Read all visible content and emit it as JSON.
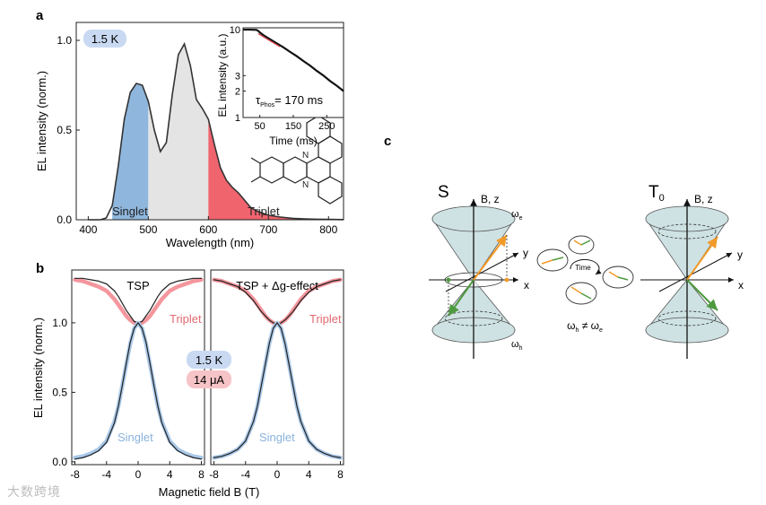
{
  "panel_labels": {
    "a": "a",
    "b": "b",
    "c": "c"
  },
  "watermark": "大数跨境",
  "colors": {
    "singlet": "#8fb6dc",
    "triplet": "#f0646e",
    "middle": "#e4e4e4",
    "cone": "#cfe2e3",
    "orange": "#f29a27",
    "green": "#4e9a3e",
    "badge_blue": "#c9d9f2",
    "badge_red": "#f6c3c6",
    "dark": "#333333"
  },
  "chart_data": [
    {
      "type": "area",
      "title": "",
      "xlabel": "Wavelength (nm)",
      "ylabel": "EL intensity (norm.)",
      "xlim": [
        380,
        825
      ],
      "ylim": [
        0,
        1.1
      ],
      "xticks": [
        400,
        500,
        600,
        700,
        800
      ],
      "yticks": [
        0.0,
        0.5,
        1.0
      ],
      "ytick_labels": [
        "0.0",
        "0.5",
        "1.0"
      ],
      "temperature_badge": "1.5 K",
      "region_labels": {
        "singlet": "Singlet",
        "triplet": "Triplet"
      },
      "region_bounds": {
        "singlet": [
          440,
          500
        ],
        "middle": [
          500,
          600
        ],
        "triplet": [
          600,
          825
        ]
      },
      "spectrum": {
        "x": [
          400,
          420,
          430,
          440,
          450,
          460,
          470,
          480,
          490,
          500,
          510,
          520,
          530,
          540,
          550,
          560,
          570,
          580,
          590,
          600,
          610,
          620,
          630,
          640,
          650,
          660,
          670,
          680,
          700,
          720,
          740,
          760,
          780,
          800,
          825
        ],
        "y": [
          0.0,
          0.0,
          0.01,
          0.08,
          0.3,
          0.56,
          0.71,
          0.76,
          0.75,
          0.66,
          0.5,
          0.38,
          0.43,
          0.7,
          0.92,
          0.98,
          0.86,
          0.67,
          0.62,
          0.56,
          0.42,
          0.29,
          0.22,
          0.18,
          0.15,
          0.11,
          0.07,
          0.05,
          0.025,
          0.015,
          0.008,
          0.005,
          0.003,
          0.002,
          0.001
        ]
      }
    },
    {
      "type": "line",
      "inset": true,
      "xlabel": "Time (ms)",
      "ylabel": "EL intensity (a.u.)",
      "yscale": "log",
      "xlim": [
        0,
        300
      ],
      "ylim": [
        1,
        10.5
      ],
      "xticks": [
        50,
        150,
        250
      ],
      "yticks": [
        1,
        2,
        3,
        10
      ],
      "annotation": "τ",
      "annotation_sub": "Phos",
      "annotation_value": "= 170 ms",
      "series": [
        {
          "name": "data",
          "x": [
            0,
            20,
            40,
            45,
            50,
            60,
            80,
            100,
            120,
            140,
            160,
            180,
            200,
            220,
            240,
            260,
            280,
            300
          ],
          "y": [
            10,
            10,
            9.95,
            9.7,
            9.3,
            8.7,
            7.8,
            7.0,
            6.3,
            5.6,
            5.0,
            4.4,
            3.9,
            3.4,
            3.0,
            2.6,
            2.3,
            2.0
          ]
        },
        {
          "name": "fit",
          "x": [
            45,
            110
          ],
          "y": [
            9.0,
            6.4
          ]
        }
      ]
    },
    {
      "type": "line",
      "title": "TSP",
      "xlabel": "",
      "ylabel": "EL intensity (norm.)",
      "xlim": [
        -8.4,
        8.4
      ],
      "ylim": [
        -0.02,
        1.38
      ],
      "xticks": [
        -8,
        -4,
        0,
        4,
        8
      ],
      "xtick_labels": [
        "-8",
        "-4",
        "0",
        "4",
        "8"
      ],
      "yticks": [
        0.0,
        0.5,
        1.0
      ],
      "ytick_labels": [
        "0.0",
        "0.5",
        "1.0"
      ],
      "series": [
        {
          "name": "Triplet",
          "x": [
            -8,
            -7,
            -6,
            -5,
            -4,
            -3,
            -2.5,
            -2,
            -1.5,
            -1,
            -0.5,
            0,
            0.5,
            1,
            1.5,
            2,
            2.5,
            3,
            4,
            5,
            6,
            7,
            8
          ],
          "y": [
            1.31,
            1.3,
            1.28,
            1.26,
            1.23,
            1.17,
            1.13,
            1.09,
            1.05,
            1.02,
            1.0,
            0.99,
            1.0,
            1.02,
            1.05,
            1.09,
            1.13,
            1.17,
            1.23,
            1.26,
            1.28,
            1.3,
            1.31
          ]
        },
        {
          "name": "Triplet fit",
          "x": [
            -8,
            -7,
            -6,
            -5,
            -4,
            -3,
            -2.5,
            -2,
            -1.5,
            -1,
            -0.5,
            0,
            0.5,
            1,
            1.5,
            2,
            2.5,
            3,
            4,
            5,
            6,
            7,
            8
          ],
          "y": [
            1.32,
            1.32,
            1.31,
            1.3,
            1.28,
            1.23,
            1.19,
            1.14,
            1.09,
            1.05,
            1.01,
            1.0,
            1.01,
            1.05,
            1.09,
            1.14,
            1.19,
            1.23,
            1.28,
            1.3,
            1.31,
            1.32,
            1.32
          ]
        },
        {
          "name": "Singlet",
          "x": [
            -8,
            -7,
            -6,
            -5,
            -4,
            -3,
            -2.5,
            -2,
            -1.5,
            -1,
            -0.5,
            0,
            0.5,
            1,
            1.5,
            2,
            2.5,
            3,
            4,
            5,
            6,
            7,
            8
          ],
          "y": [
            0.03,
            0.04,
            0.06,
            0.09,
            0.15,
            0.29,
            0.4,
            0.55,
            0.7,
            0.85,
            0.96,
            1.0,
            0.96,
            0.85,
            0.7,
            0.55,
            0.4,
            0.29,
            0.15,
            0.09,
            0.06,
            0.04,
            0.03
          ]
        },
        {
          "name": "Singlet fit",
          "x": [
            -8,
            -7,
            -6,
            -5,
            -4,
            -3,
            -2.5,
            -2,
            -1.5,
            -1,
            -0.5,
            0,
            0.5,
            1,
            1.5,
            2,
            2.5,
            3,
            4,
            5,
            6,
            7,
            8
          ],
          "y": [
            0.02,
            0.03,
            0.05,
            0.08,
            0.14,
            0.28,
            0.4,
            0.55,
            0.71,
            0.86,
            0.96,
            1.0,
            0.96,
            0.86,
            0.71,
            0.55,
            0.4,
            0.28,
            0.14,
            0.08,
            0.05,
            0.03,
            0.02
          ]
        }
      ],
      "labels": {
        "triplet": "Triplet",
        "singlet": "Singlet"
      }
    },
    {
      "type": "line",
      "title": "TSP + Δg-effect",
      "xlabel": "Magnetic field B (T)",
      "ylabel": "",
      "xlim": [
        -8.4,
        8.4
      ],
      "ylim": [
        -0.02,
        1.38
      ],
      "xticks": [
        -8,
        -4,
        0,
        4,
        8
      ],
      "xtick_labels": [
        "-8",
        "-4",
        "0",
        "4",
        "8"
      ],
      "series": [
        {
          "name": "Triplet",
          "x": [
            -8,
            -7,
            -6,
            -5,
            -4,
            -3,
            -2.5,
            -2,
            -1.5,
            -1,
            -0.5,
            0,
            0.5,
            1,
            1.5,
            2,
            2.5,
            3,
            4,
            5,
            6,
            7,
            8
          ],
          "y": [
            1.31,
            1.3,
            1.28,
            1.26,
            1.23,
            1.17,
            1.13,
            1.09,
            1.05,
            1.02,
            1.0,
            0.99,
            1.0,
            1.02,
            1.05,
            1.09,
            1.13,
            1.17,
            1.23,
            1.26,
            1.28,
            1.3,
            1.31
          ]
        },
        {
          "name": "Triplet fit",
          "x": [
            -8,
            -7,
            -6,
            -5,
            -4,
            -3,
            -2.5,
            -2,
            -1.5,
            -1,
            -0.5,
            0,
            0.5,
            1,
            1.5,
            2,
            2.5,
            3,
            4,
            5,
            6,
            7,
            8
          ],
          "y": [
            1.31,
            1.3,
            1.28,
            1.26,
            1.22,
            1.16,
            1.12,
            1.08,
            1.05,
            1.02,
            1.0,
            0.99,
            1.0,
            1.02,
            1.05,
            1.08,
            1.12,
            1.16,
            1.22,
            1.26,
            1.28,
            1.3,
            1.31
          ]
        },
        {
          "name": "Singlet",
          "x": [
            -8,
            -7,
            -6,
            -5,
            -4,
            -3,
            -2.5,
            -2,
            -1.5,
            -1,
            -0.5,
            0,
            0.5,
            1,
            1.5,
            2,
            2.5,
            3,
            4,
            5,
            6,
            7,
            8
          ],
          "y": [
            0.03,
            0.04,
            0.06,
            0.09,
            0.15,
            0.29,
            0.4,
            0.55,
            0.7,
            0.85,
            0.96,
            1.0,
            0.96,
            0.85,
            0.7,
            0.55,
            0.4,
            0.29,
            0.15,
            0.09,
            0.06,
            0.04,
            0.03
          ]
        },
        {
          "name": "Singlet fit",
          "x": [
            -8,
            -7,
            -6,
            -5,
            -4,
            -3,
            -2.5,
            -2,
            -1.5,
            -1,
            -0.5,
            0,
            0.5,
            1,
            1.5,
            2,
            2.5,
            3,
            4,
            5,
            6,
            7,
            8
          ],
          "y": [
            0.03,
            0.04,
            0.06,
            0.09,
            0.15,
            0.29,
            0.4,
            0.55,
            0.7,
            0.85,
            0.96,
            1.0,
            0.96,
            0.85,
            0.7,
            0.55,
            0.4,
            0.29,
            0.15,
            0.09,
            0.06,
            0.04,
            0.03
          ]
        }
      ],
      "labels": {
        "triplet": "Triplet",
        "singlet": "Singlet"
      }
    }
  ],
  "panel_b_badges": {
    "temperature": "1.5 K",
    "current": "14 μA"
  },
  "panel_c": {
    "left_state": "S",
    "right_state": "T",
    "right_state_sub": "0",
    "axis_bz": "B, z",
    "axis_y": "y",
    "axis_x": "x",
    "omega_e": "ω",
    "omega_e_sub": "e",
    "omega_h": "ω",
    "omega_h_sub": "h",
    "time_label": "Time",
    "inequality": "ω",
    "inequality_mid": " ≠ ω",
    "inequality_sub_h": "h",
    "inequality_sub_e": "e"
  }
}
